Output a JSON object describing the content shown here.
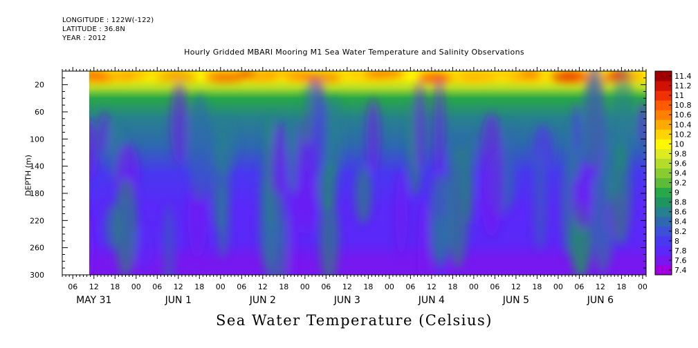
{
  "header": {
    "longitude": "LONGITUDE : 122W(-122)",
    "latitude": "LATITUDE : 36.8N",
    "year": "YEAR : 2012",
    "title": "Hourly Gridded MBARI Mooring M1 Sea Water Temperature and Salinity Observations"
  },
  "chart_data": {
    "type": "heatmap",
    "title": "Hourly Gridded MBARI Mooring M1 Sea Water Temperature and Salinity Observations",
    "xlabel": "Sea Water Temperature (Celsius)",
    "ylabel": "DEPTH (m)",
    "ylim": [
      300,
      0
    ],
    "xlim": [
      "2012-05-31T03:00",
      "2012-06-07T01:00"
    ],
    "data_start": "2012-05-31T09:00",
    "y_ticks": [
      20,
      60,
      100,
      140,
      180,
      220,
      260,
      300
    ],
    "x_hour_ticks": [
      "06",
      "12",
      "18",
      "00",
      "06",
      "12",
      "18",
      "00",
      "06",
      "12",
      "18",
      "00",
      "06",
      "12",
      "18",
      "00",
      "06",
      "12",
      "18",
      "00",
      "06",
      "12",
      "18",
      "00",
      "06",
      "12",
      "18",
      "00",
      "06",
      "12",
      "18",
      "00"
    ],
    "x_day_labels": [
      "MAY 31",
      "JUN  1",
      "JUN  2",
      "JUN  3",
      "JUN  4",
      "JUN  5",
      "JUN  6"
    ],
    "colorbar": {
      "levels": [
        7.4,
        7.6,
        7.8,
        8,
        8.2,
        8.4,
        8.6,
        8.8,
        9,
        9.2,
        9.4,
        9.6,
        9.8,
        10,
        10.2,
        10.4,
        10.6,
        10.8,
        11,
        11.2,
        11.4
      ],
      "labels": [
        "7.4",
        "7.6",
        "7.8",
        "8",
        "8.2",
        "8.4",
        "8.6",
        "8.8",
        "9",
        "9.2",
        "9.4",
        "9.6",
        "9.8",
        "10",
        "10.2",
        "10.4",
        "10.6",
        "10.8",
        "11",
        "11.2",
        "11.4"
      ],
      "colors": [
        "#a000e0",
        "#7818f0",
        "#5a28f8",
        "#4838f0",
        "#3c50d8",
        "#2e68b0",
        "#27808f",
        "#1f9460",
        "#28a848",
        "#5cbc38",
        "#88cc30",
        "#b4dc28",
        "#dcec20",
        "#fff800",
        "#ffd400",
        "#ffaa00",
        "#ff8000",
        "#ff5a00",
        "#f03000",
        "#d01000",
        "#a00000"
      ]
    },
    "depth_profile": [
      {
        "depth": 0,
        "value": 10.0
      },
      {
        "depth": 10,
        "value": 10.0
      },
      {
        "depth": 25,
        "value": 9.6
      },
      {
        "depth": 40,
        "value": 9.0
      },
      {
        "depth": 70,
        "value": 8.6
      },
      {
        "depth": 110,
        "value": 8.4
      },
      {
        "depth": 150,
        "value": 8.1
      },
      {
        "depth": 200,
        "value": 7.95
      },
      {
        "depth": 250,
        "value": 7.85
      },
      {
        "depth": 280,
        "value": 7.75
      },
      {
        "depth": 300,
        "value": 7.6
      }
    ]
  }
}
